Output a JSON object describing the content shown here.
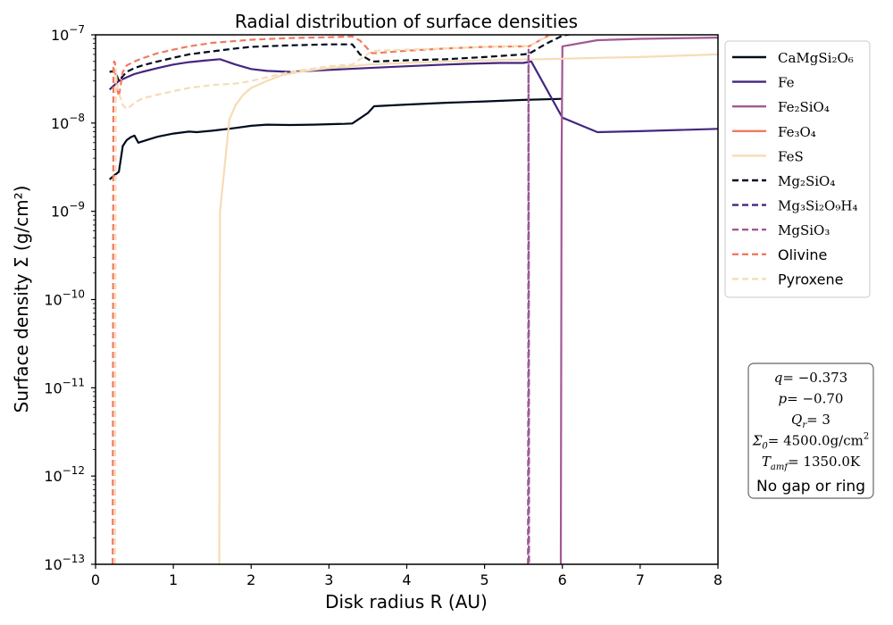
{
  "chart_data": {
    "type": "line",
    "title": "Radial distribution of surface densities",
    "xlabel": "Disk radius R (AU)",
    "ylabel": "Surface density Σ (g/cm²)",
    "xlim": [
      0,
      8
    ],
    "ylim": [
      1e-13,
      1e-07
    ],
    "yscale": "log",
    "grid": false,
    "legend_position": "right-top",
    "x_ticks": [
      0,
      1,
      2,
      3,
      4,
      5,
      6,
      7,
      8
    ],
    "x_tick_labels": [
      "0",
      "1",
      "2",
      "3",
      "4",
      "5",
      "6",
      "7",
      "8"
    ],
    "y_ticks": [
      1e-13,
      1e-12,
      1e-11,
      1e-10,
      1e-09,
      1e-08,
      1e-07
    ],
    "y_tick_labels": [
      {
        "base": "10",
        "exp": "−13"
      },
      {
        "base": "10",
        "exp": "−12"
      },
      {
        "base": "10",
        "exp": "−11"
      },
      {
        "base": "10",
        "exp": "−10"
      },
      {
        "base": "10",
        "exp": "−9"
      },
      {
        "base": "10",
        "exp": "−8"
      },
      {
        "base": "10",
        "exp": "−7"
      }
    ],
    "series": [
      {
        "name": "CaMgSi₂O₆",
        "color": "#000b1e",
        "dash": "solid",
        "x": [
          0.18,
          0.25,
          0.3,
          0.35,
          0.4,
          0.45,
          0.5,
          0.55,
          0.6,
          0.7,
          0.8,
          1.0,
          1.2,
          1.3,
          1.5,
          1.8,
          2.0,
          2.2,
          2.5,
          2.8,
          3.0,
          3.2,
          3.3,
          3.5,
          3.58,
          4.0,
          4.5,
          5.0,
          5.5,
          6.0
        ],
        "y": [
          2.3e-09,
          2.6e-09,
          2.8e-09,
          5.5e-09,
          6.4e-09,
          6.9e-09,
          7.2e-09,
          6e-09,
          6.2e-09,
          6.6e-09,
          7e-09,
          7.6e-09,
          8e-09,
          7.9e-09,
          8.2e-09,
          8.8e-09,
          9.3e-09,
          9.6e-09,
          9.5e-09,
          9.6e-09,
          9.7e-09,
          9.8e-09,
          9.9e-09,
          1.3e-08,
          1.55e-08,
          1.62e-08,
          1.7e-08,
          1.76e-08,
          1.83e-08,
          1.88e-08
        ]
      },
      {
        "name": "Fe",
        "color": "#45267f",
        "dash": "solid",
        "x": [
          0.18,
          0.3,
          0.4,
          0.5,
          0.6,
          0.8,
          1.0,
          1.2,
          1.4,
          1.6,
          1.8,
          2.0,
          2.2,
          2.5,
          3.0,
          3.5,
          4.0,
          4.5,
          4.8,
          5.2,
          5.5,
          5.6,
          6.0,
          6.45,
          7.0,
          8.0
        ],
        "y": [
          2.4e-08,
          3e-08,
          3.3e-08,
          3.6e-08,
          3.8e-08,
          4.2e-08,
          4.6e-08,
          4.9e-08,
          5.1e-08,
          5.3e-08,
          4.6e-08,
          4.1e-08,
          3.9e-08,
          3.8e-08,
          4e-08,
          4.2e-08,
          4.4e-08,
          4.6e-08,
          4.7e-08,
          4.8e-08,
          4.8e-08,
          5e-08,
          1.15e-08,
          7.9e-09,
          8.1e-09,
          8.6e-09
        ]
      },
      {
        "name": "Fe₂SiO₄",
        "color": "#a35793",
        "dash": "solid",
        "x": [
          5.98,
          5.99,
          6.0,
          6.45,
          7.0,
          8.0
        ],
        "y": [
          1e-13,
          4e-09,
          7.4e-08,
          8.7e-08,
          9e-08,
          9.3e-08
        ]
      },
      {
        "name": "Fe₃O₄",
        "color": "#f07a61",
        "dash": "solid",
        "x": [],
        "y": []
      },
      {
        "name": "FeS",
        "color": "#f6dcb6",
        "dash": "solid",
        "x": [
          1.59,
          1.6,
          1.72,
          1.8,
          1.9,
          2.0,
          2.2,
          2.4,
          2.7,
          3.0,
          3.3,
          3.5,
          4.0,
          4.5,
          5.0,
          5.5,
          6.0,
          6.5,
          7.0,
          7.5,
          8.0
        ],
        "y": [
          1e-13,
          1e-09,
          1.1e-08,
          1.6e-08,
          2.1e-08,
          2.5e-08,
          3e-08,
          3.5e-08,
          3.9e-08,
          4.2e-08,
          4.4e-08,
          4.6e-08,
          4.8e-08,
          5e-08,
          5.15e-08,
          5.25e-08,
          5.35e-08,
          5.5e-08,
          5.6e-08,
          5.8e-08,
          6e-08
        ]
      },
      {
        "name": "Mg₂SiO₄",
        "color": "#000b1e",
        "dash": "dashed",
        "x": [
          0.18,
          0.25,
          0.3,
          0.35,
          0.4,
          0.5,
          0.6,
          0.8,
          1.0,
          1.2,
          1.5,
          1.8,
          2.0,
          2.5,
          3.0,
          3.3,
          3.4,
          3.55,
          3.6,
          4.0,
          4.5,
          5.0,
          5.5,
          5.57,
          5.8,
          6.0,
          6.2
        ],
        "y": [
          3.8e-08,
          3.9e-08,
          3e-08,
          3.4e-08,
          3.8e-08,
          4.2e-08,
          4.5e-08,
          5e-08,
          5.5e-08,
          6e-08,
          6.5e-08,
          7e-08,
          7.3e-08,
          7.6e-08,
          7.8e-08,
          7.8e-08,
          6e-08,
          5e-08,
          5e-08,
          5.15e-08,
          5.3e-08,
          5.6e-08,
          6e-08,
          6.1e-08,
          8e-08,
          9.8e-08,
          1.05e-07
        ]
      },
      {
        "name": "Mg₃Si₂O₉H₄",
        "color": "#45267f",
        "dash": "dashed",
        "x": [
          5.555,
          5.56,
          5.565,
          5.57,
          5.575
        ],
        "y": [
          1e-13,
          1e-13,
          6e-08,
          1e-13,
          1e-13
        ]
      },
      {
        "name": "MgSiO₃",
        "color": "#a35793",
        "dash": "dashed",
        "x": [
          5.56,
          5.565,
          5.57
        ],
        "y": [
          1e-13,
          6.8e-08,
          1e-13
        ]
      },
      {
        "name": "Olivine",
        "color": "#f07a61",
        "dash": "dashed",
        "x": [
          0.22,
          0.23,
          0.24,
          0.25,
          0.26,
          0.3,
          0.35,
          0.4,
          0.5,
          0.6,
          0.8,
          1.0,
          1.2,
          1.5,
          2.0,
          2.5,
          3.0,
          3.3,
          3.4,
          3.55,
          3.6,
          4.0,
          4.5,
          5.0,
          5.5,
          5.57,
          5.8,
          6.0,
          6.2
        ],
        "y": [
          1e-13,
          4.6e-08,
          5e-08,
          4.8e-08,
          3e-08,
          2e-08,
          3.8e-08,
          4.5e-08,
          5e-08,
          5.4e-08,
          6.2e-08,
          6.8e-08,
          7.4e-08,
          8.1e-08,
          8.8e-08,
          9.2e-08,
          9.4e-08,
          9.6e-08,
          8.6e-08,
          6.2e-08,
          6.2e-08,
          6.6e-08,
          7e-08,
          7.3e-08,
          7.4e-08,
          7.4e-08,
          9.6e-08,
          1.1e-07,
          1.2e-07
        ]
      },
      {
        "name": "Pyroxene",
        "color": "#f6dcb6",
        "dash": "dashed",
        "x": [
          0.25,
          0.26,
          0.27,
          0.3,
          0.35,
          0.4,
          0.45,
          0.5,
          0.6,
          0.8,
          1.0,
          1.2,
          1.5,
          1.8,
          2.0,
          2.5,
          3.0,
          3.3,
          3.4,
          3.55,
          3.6,
          4.0,
          4.5,
          5.0,
          5.5,
          5.57,
          5.8,
          6.0,
          6.2
        ],
        "y": [
          1e-13,
          4.1e-08,
          3.2e-08,
          2.2e-08,
          1.6e-08,
          1.45e-08,
          1.55e-08,
          1.7e-08,
          1.9e-08,
          2.1e-08,
          2.3e-08,
          2.5e-08,
          2.7e-08,
          2.8e-08,
          3e-08,
          3.8e-08,
          4.4e-08,
          4.6e-08,
          5.3e-08,
          6.5e-08,
          6.6e-08,
          6.8e-08,
          7e-08,
          7.3e-08,
          7.5e-08,
          7.4e-08,
          9.5e-08,
          1.05e-07,
          1.1e-07
        ]
      }
    ],
    "annotation": {
      "lines": [
        {
          "lhs": "q",
          "rhs": "= −0.373"
        },
        {
          "lhs": "p",
          "rhs": "= −0.70"
        },
        {
          "lhs": "Q",
          "sub": "r",
          "rhs": "= 3"
        },
        {
          "lhs": "Σ",
          "sub": "0",
          "rhs": "= 4500.0g/cm",
          "sup": "2"
        },
        {
          "lhs": "T",
          "sub": "amf",
          "rhs": "= 1350.0K"
        }
      ],
      "note": "No gap or ring"
    }
  }
}
